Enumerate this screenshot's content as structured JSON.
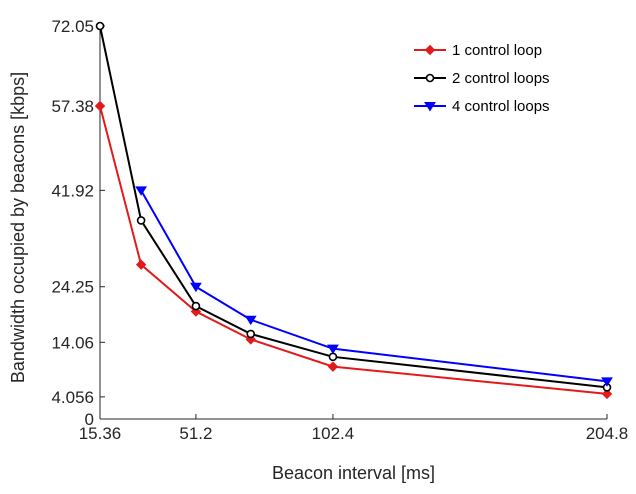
{
  "chart_data": {
    "type": "line",
    "title": "",
    "xlabel": "Beacon interval [ms]",
    "ylabel": "Bandwidth occupied by beacons [kbps]",
    "xlim": [
      15.36,
      204.8
    ],
    "ylim": [
      0,
      72.05
    ],
    "xticks": [
      15.36,
      51.2,
      102.4,
      204.8
    ],
    "xtick_labels": [
      "15.36",
      "51.2",
      "102.4",
      "204.8"
    ],
    "yticks": [
      0,
      4.056,
      14.06,
      24.25,
      41.92,
      57.38,
      72.05
    ],
    "ytick_labels": [
      "0",
      "4.056",
      "14.06",
      "24.25",
      "41.92",
      "57.38",
      "72.05"
    ],
    "grid": false,
    "legend_position": "top-right",
    "series": [
      {
        "name": "1 control loop",
        "color": "#e31a1c",
        "marker": "diamond",
        "x": [
          15.36,
          30.72,
          51.2,
          71.68,
          102.4,
          204.8
        ],
        "y": [
          57.38,
          28.3,
          19.7,
          14.6,
          9.6,
          4.6
        ]
      },
      {
        "name": "2 control loops",
        "color": "#000000",
        "marker": "circle",
        "x": [
          15.36,
          30.72,
          51.2,
          71.68,
          102.4,
          204.8
        ],
        "y": [
          72.05,
          36.4,
          20.7,
          15.6,
          11.4,
          5.8
        ]
      },
      {
        "name": "4 control loops",
        "color": "#0000ff",
        "marker": "triangle-down",
        "x": [
          30.72,
          51.2,
          71.68,
          102.4,
          204.8
        ],
        "y": [
          41.92,
          24.25,
          18.2,
          12.9,
          6.9
        ]
      }
    ]
  }
}
